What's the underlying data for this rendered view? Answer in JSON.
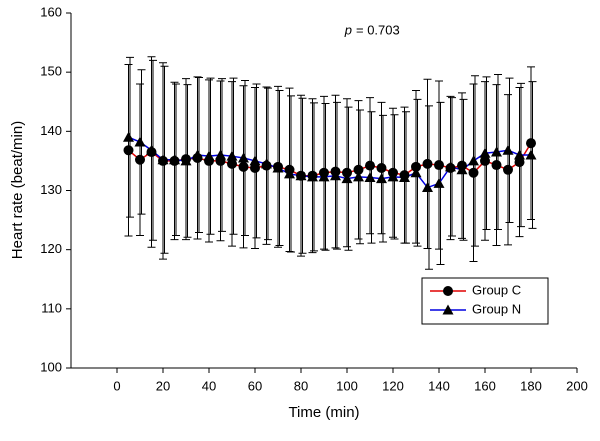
{
  "chart_data": {
    "type": "line",
    "xlabel": "Time (min)",
    "ylabel": "Heart rate (beat/min)",
    "annotation_symbol": "p",
    "annotation_text": "= 0.703",
    "x": [
      5,
      10,
      15,
      20,
      25,
      30,
      35,
      40,
      45,
      50,
      55,
      60,
      65,
      70,
      75,
      80,
      85,
      90,
      95,
      100,
      105,
      110,
      115,
      120,
      125,
      130,
      135,
      140,
      145,
      150,
      155,
      160,
      165,
      170,
      175,
      180
    ],
    "series": [
      {
        "name": "Group C",
        "color": "#e00000",
        "marker": "circle",
        "marker_color": "#000000",
        "values": [
          136.8,
          135.2,
          136.5,
          135,
          135,
          135.3,
          135.5,
          135,
          135,
          134.5,
          134,
          133.8,
          134.2,
          134,
          133.5,
          132.5,
          132.5,
          133,
          133.2,
          133,
          133.5,
          134.2,
          133.8,
          133,
          132.6,
          134,
          134.5,
          134.3,
          133.8,
          134.2,
          133,
          135,
          134.3,
          133.5,
          134.8,
          138
        ],
        "errors": [
          14.5,
          12.8,
          16.1,
          16.6,
          13.3,
          13.6,
          13.7,
          13.7,
          13.5,
          13.9,
          13.7,
          13.6,
          13.3,
          13.6,
          13.8,
          13.6,
          13,
          12.9,
          12.9,
          12.5,
          11.7,
          11.5,
          11.1,
          10.9,
          11.5,
          12.9,
          14.3,
          14.2,
          12.1,
          12.3,
          15,
          13.4,
          13.6,
          12.7,
          12.6,
          12.9
        ]
      },
      {
        "name": "Group N",
        "color": "#0000e0",
        "marker": "triangle",
        "marker_color": "#000000",
        "values": [
          139,
          138.2,
          136.8,
          135.2,
          135.2,
          135,
          136,
          135.8,
          136,
          135.8,
          135.5,
          135,
          134.5,
          133.8,
          132.8,
          132.5,
          132.3,
          132.3,
          132.5,
          132,
          132.3,
          132.2,
          132,
          132.3,
          132.2,
          133,
          130.5,
          131.2,
          134,
          133.5,
          135,
          136.3,
          136.5,
          136.8,
          136,
          136
        ],
        "errors": [
          13.5,
          12.2,
          15.2,
          15.8,
          12.8,
          12.9,
          13.1,
          13.2,
          12.9,
          13.2,
          13.1,
          13,
          12.8,
          13.1,
          13.2,
          13.1,
          12.5,
          12.4,
          12.4,
          12.1,
          11.3,
          11.1,
          10.7,
          10.5,
          11.1,
          12.4,
          13.8,
          13.7,
          11.7,
          11.9,
          14.4,
          12.9,
          13.1,
          12.2,
          12.1,
          12.4
        ]
      }
    ],
    "xlim": [
      -20,
      200
    ],
    "xticks": [
      0,
      20,
      40,
      60,
      80,
      100,
      120,
      140,
      160,
      180,
      200
    ],
    "ylim": [
      100,
      160
    ],
    "yticks": [
      100,
      110,
      120,
      130,
      140,
      150,
      160
    ],
    "legend": "lower right",
    "grid": false
  }
}
